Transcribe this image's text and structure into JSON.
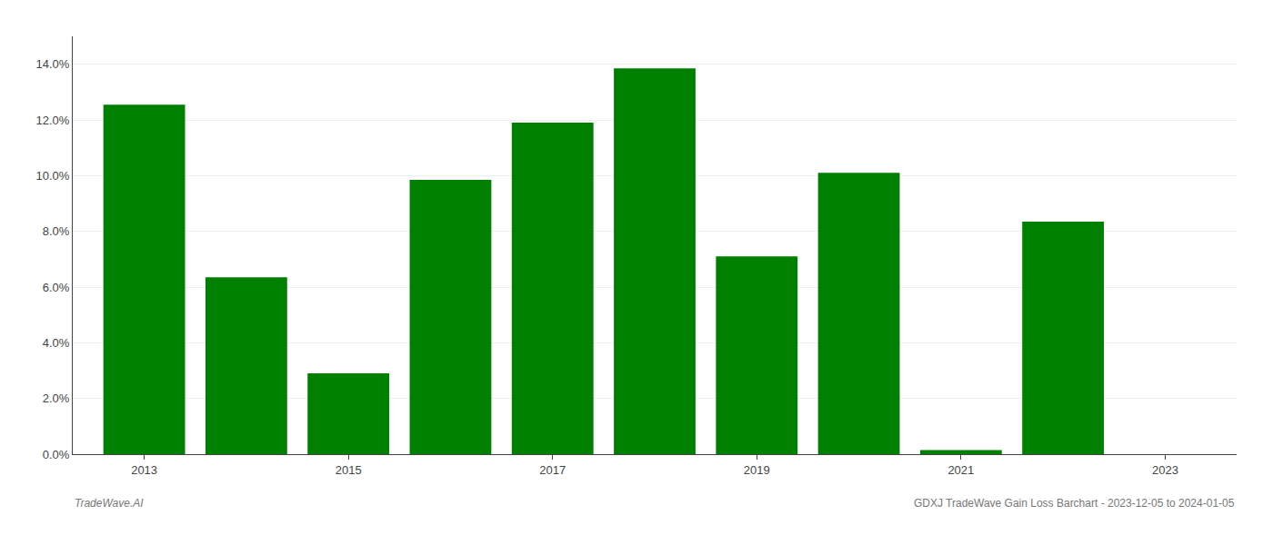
{
  "chart_data": {
    "type": "bar",
    "x": [
      2013,
      2014,
      2015,
      2016,
      2017,
      2018,
      2019,
      2020,
      2021,
      2022,
      2023
    ],
    "values": [
      0.1255,
      0.0635,
      0.029,
      0.0985,
      0.119,
      0.1385,
      0.071,
      0.101,
      0.0015,
      0.0835,
      0.0
    ],
    "color": "#008000",
    "xlim": [
      2012.3,
      2023.7
    ],
    "xticks": [
      2013,
      2015,
      2017,
      2019,
      2021,
      2023
    ],
    "ylim": [
      0,
      0.15
    ],
    "yticks": [
      {
        "value": 0.0,
        "label": "0.0%"
      },
      {
        "value": 0.02,
        "label": "2.0%"
      },
      {
        "value": 0.04,
        "label": "4.0%"
      },
      {
        "value": 0.06,
        "label": "6.0%"
      },
      {
        "value": 0.08,
        "label": "8.0%"
      },
      {
        "value": 0.1,
        "label": "10.0%"
      },
      {
        "value": 0.12,
        "label": "12.0%"
      },
      {
        "value": 0.14,
        "label": "14.0%"
      }
    ],
    "grid": true,
    "annotations": [
      "TradeWave.AI",
      "GDXJ TradeWave Gain Loss Barchart - 2023-12-05 to 2024-01-05"
    ]
  }
}
